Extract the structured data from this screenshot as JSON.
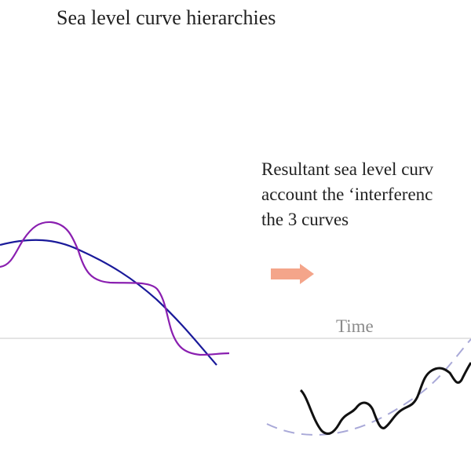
{
  "title": "Sea level curve hierarchies",
  "note": {
    "lines": [
      "Resultant sea level curv",
      "account the ‘interferenc",
      "the 3 curves"
    ]
  },
  "axis": {
    "label": "Time"
  }
}
